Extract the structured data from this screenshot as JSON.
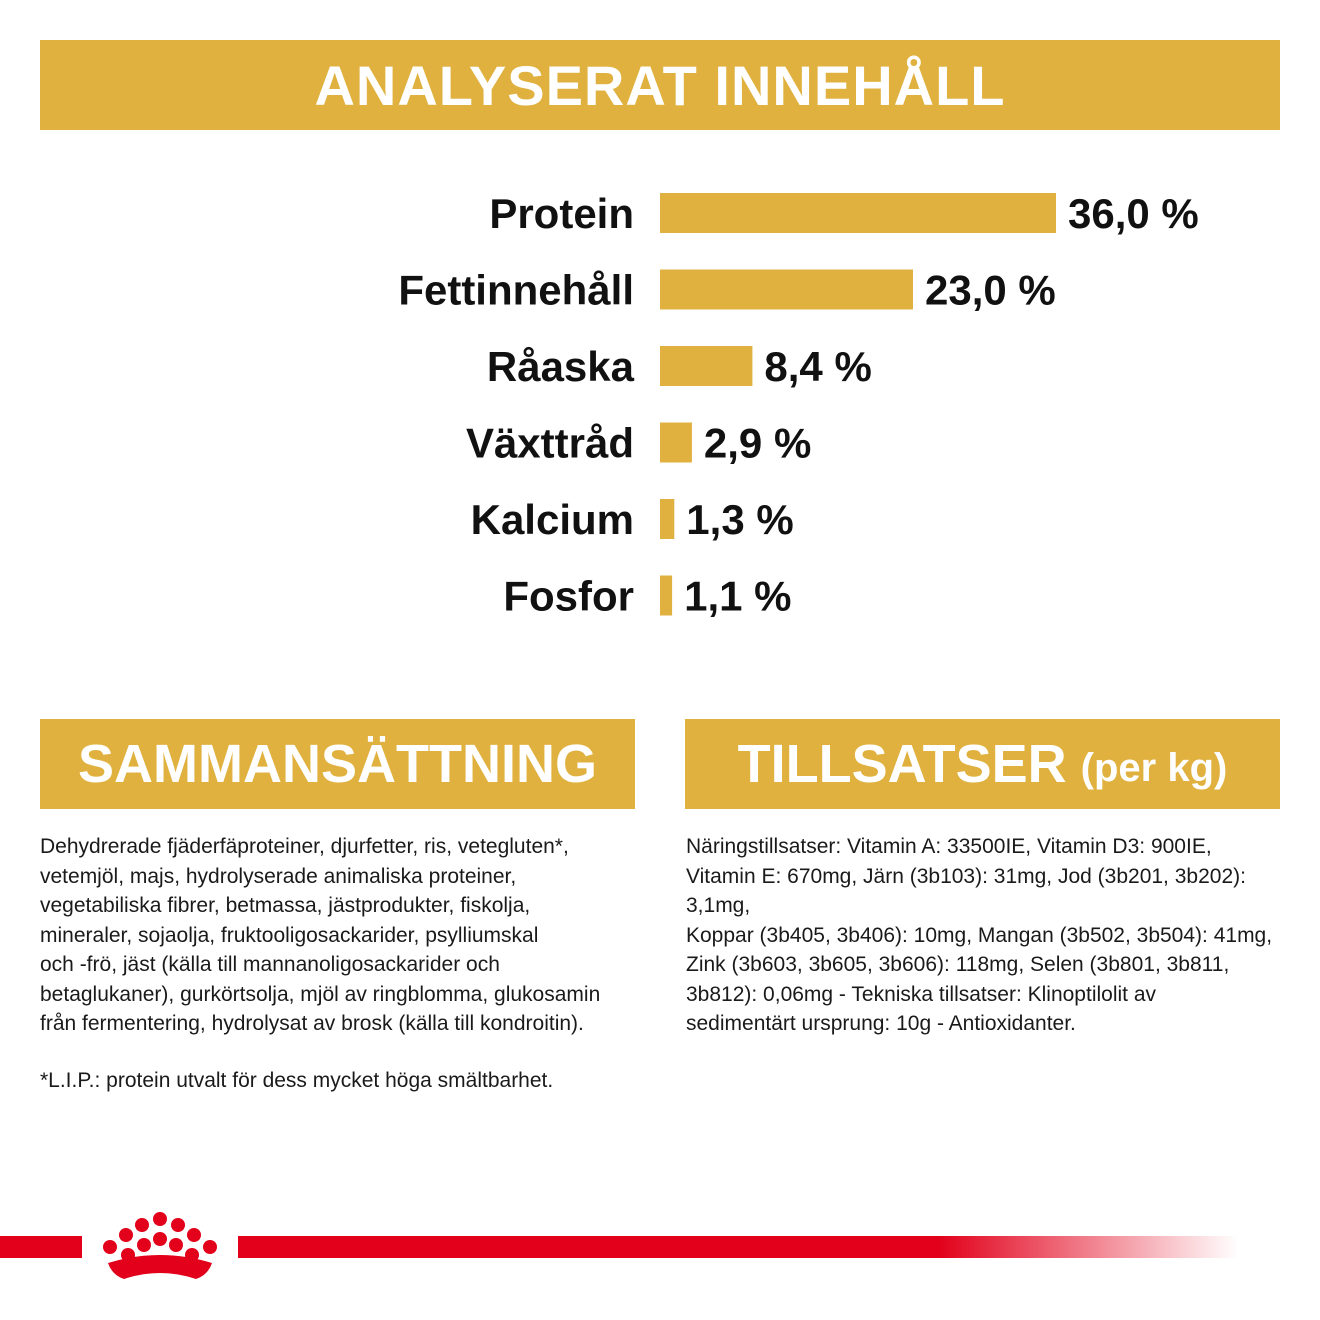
{
  "header": {
    "title": "ANALYSERAT INNEHÅLL"
  },
  "accent_color": "#e0b13e",
  "brand_red": "#e2001a",
  "chart_data": {
    "type": "bar",
    "orientation": "horizontal",
    "title": "ANALYSERAT INNEHÅLL",
    "categories": [
      "Protein",
      "Fettinnehåll",
      "Råaska",
      "Växttråd",
      "Kalcium",
      "Fosfor"
    ],
    "values": [
      36.0,
      23.0,
      8.4,
      2.9,
      1.3,
      1.1
    ],
    "value_labels": [
      "36,0 %",
      "23,0 %",
      "8,4 %",
      "2,9 %",
      "1,3 %",
      "1,1 %"
    ],
    "unit": "%",
    "xlim": [
      0,
      36
    ],
    "grid": false,
    "legend": "none",
    "bar_color": "#e0b13e"
  },
  "composition": {
    "title": "SAMMANSÄTTNING",
    "lines": [
      "Dehydrerade fjäderfäproteiner, djurfetter, ris, vetegluten*,",
      "vetemjöl, majs, hydrolyserade animaliska proteiner,",
      "vegetabiliska fibrer, betmassa, jästprodukter, fiskolja,",
      "mineraler, sojaolja, fruktooligosackarider, psylliumskal",
      "och -frö, jäst (källa till mannanoligosackarider och",
      "betaglukaner), gurkörtsolja, mjöl av ringblomma, glukosamin",
      "från fermentering, hydrolysat av brosk (källa till kondroitin)."
    ],
    "footnote": "*L.I.P.: protein utvalt för dess mycket höga smältbarhet."
  },
  "additives": {
    "title": "TILLSATSER",
    "title_suffix": "(per kg)",
    "lines": [
      "Näringstillsatser: Vitamin A: 33500IE, Vitamin D3: 900IE,",
      "Vitamin E: 670mg, Järn (3b103): 31mg, Jod (3b201, 3b202): 3,1mg,",
      "Koppar (3b405, 3b406): 10mg, Mangan (3b502, 3b504): 41mg,",
      "Zink (3b603, 3b605, 3b606): 118mg, Selen (3b801, 3b811,",
      "3b812): 0,06mg - Tekniska tillsatser: Klinoptilolit av",
      "sedimentärt ursprung: 10g - Antioxidanter."
    ]
  },
  "logo": {
    "icon": "crown-icon"
  }
}
